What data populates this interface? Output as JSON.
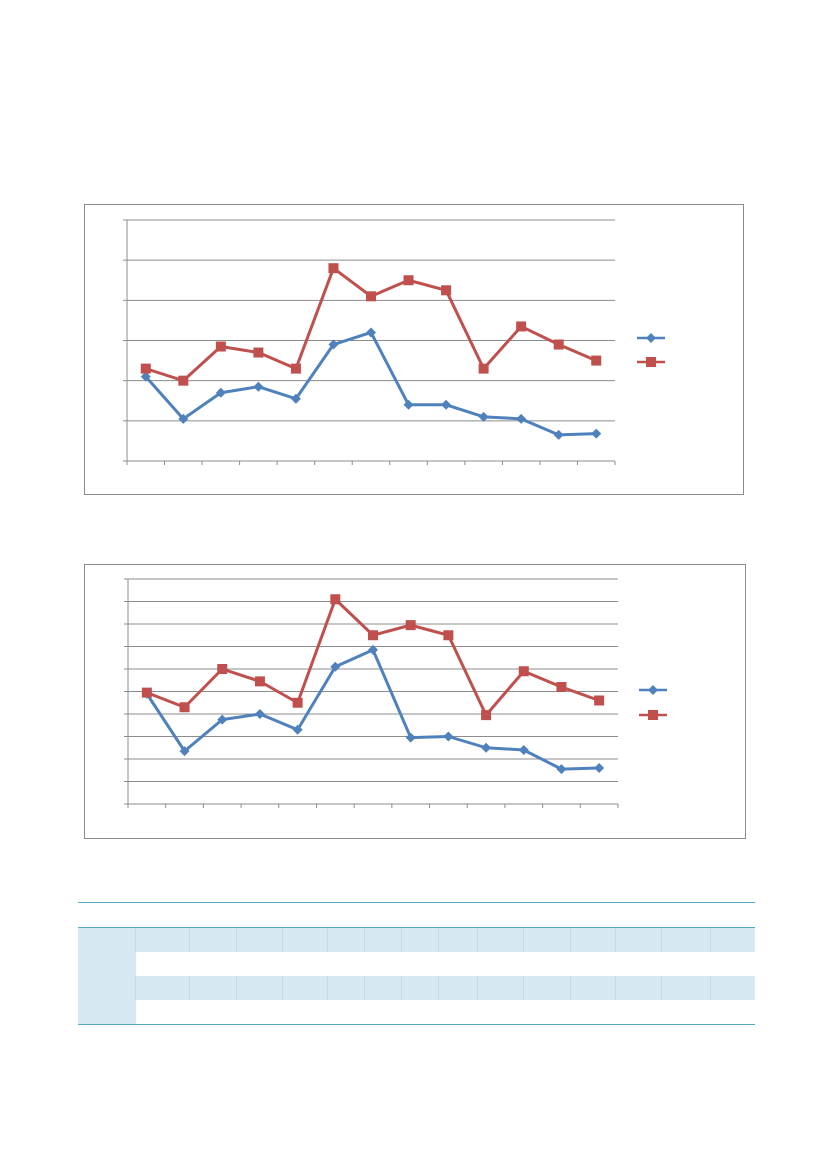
{
  "chart_data": [
    {
      "type": "line",
      "title": "",
      "xlabel": "",
      "ylabel": "",
      "categories_count": 13,
      "ylim": [
        0,
        6
      ],
      "y_gridlines": 6,
      "grid": true,
      "legend": "right",
      "series": [
        {
          "color": "#4f81bd",
          "marker": "diamond",
          "values": [
            2.1,
            1.05,
            1.7,
            1.85,
            1.55,
            2.9,
            3.2,
            1.4,
            1.4,
            1.1,
            1.05,
            0.65,
            0.68
          ]
        },
        {
          "color": "#c0504d",
          "marker": "square",
          "values": [
            2.3,
            2.0,
            2.85,
            2.7,
            2.3,
            4.8,
            4.1,
            4.5,
            4.25,
            2.3,
            3.35,
            2.9,
            2.5
          ]
        }
      ]
    },
    {
      "type": "line",
      "title": "",
      "xlabel": "",
      "ylabel": "",
      "categories_count": 13,
      "ylim": [
        0,
        10
      ],
      "y_gridlines": 10,
      "grid": true,
      "legend": "right",
      "series": [
        {
          "color": "#4f81bd",
          "marker": "diamond",
          "values": [
            4.9,
            2.35,
            3.75,
            4.0,
            3.3,
            6.1,
            6.85,
            2.95,
            3.0,
            2.5,
            2.4,
            1.55,
            1.6
          ]
        },
        {
          "color": "#c0504d",
          "marker": "square",
          "values": [
            4.95,
            4.3,
            6.0,
            5.45,
            4.5,
            9.1,
            7.5,
            7.95,
            7.5,
            3.95,
            5.9,
            5.2,
            4.6
          ]
        }
      ]
    }
  ],
  "table": {
    "column_count": 15,
    "rows": [
      "head",
      "shade",
      "plain",
      "shade",
      "plain"
    ]
  }
}
